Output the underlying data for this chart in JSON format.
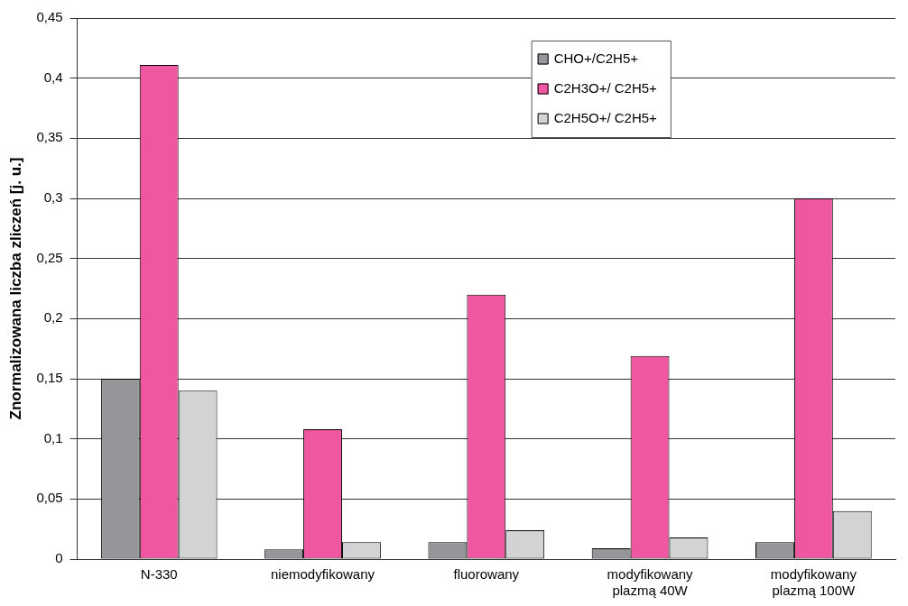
{
  "chart_data": {
    "type": "bar",
    "ylabel": "Znormalizowana liczba zliczeń [j. u.]",
    "categories": [
      "N-330",
      "niemodyfikowany",
      "fluorowany",
      "modyfikowany plazmą 40W",
      "modyfikowany plazmą 100W"
    ],
    "series": [
      {
        "name": "CHO+/C2H5+",
        "color": "#96969a",
        "values": [
          0.15,
          0.008,
          0.014,
          0.009,
          0.014
        ]
      },
      {
        "name": "C2H3O+/ C2H5+",
        "color": "#ef58a0",
        "values": [
          0.411,
          0.108,
          0.22,
          0.169,
          0.3
        ]
      },
      {
        "name": "C2H5O+/ C2H5+",
        "color": "#d2d3d5",
        "values": [
          0.14,
          0.014,
          0.024,
          0.018,
          0.04
        ]
      }
    ],
    "ylim": [
      0,
      0.45
    ],
    "yticks": [
      {
        "value": 0,
        "label": "0"
      },
      {
        "value": 0.05,
        "label": "0,05"
      },
      {
        "value": 0.1,
        "label": "0,1"
      },
      {
        "value": 0.15,
        "label": "0,15"
      },
      {
        "value": 0.2,
        "label": "0,2"
      },
      {
        "value": 0.25,
        "label": "0,25"
      },
      {
        "value": 0.3,
        "label": "0,3"
      },
      {
        "value": 0.35,
        "label": "0,35"
      },
      {
        "value": 0.4,
        "label": "0,4"
      },
      {
        "value": 0.45,
        "label": "0,45"
      }
    ],
    "grid": "y",
    "legend": "top right"
  }
}
